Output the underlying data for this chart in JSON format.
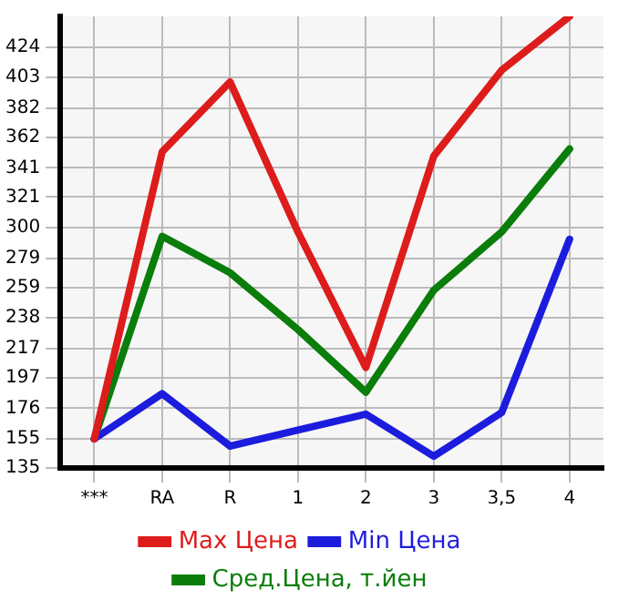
{
  "chart_data": {
    "type": "line",
    "categories": [
      "***",
      "RA",
      "R",
      "1",
      "2",
      "3",
      "3,5",
      "4"
    ],
    "series": [
      {
        "name": "Max Цена",
        "color": "#dd1c1c",
        "values": [
          155,
          352,
          400,
          297,
          204,
          349,
          408,
          445
        ]
      },
      {
        "name": "Min Цена",
        "color": "#1c1cdd",
        "values": [
          155,
          186,
          150,
          161,
          172,
          143,
          173,
          292
        ]
      },
      {
        "name": "Сред.Цена, т.йен",
        "color": "#0a7d0a",
        "values": [
          155,
          294,
          269,
          230,
          187,
          257,
          297,
          354
        ]
      }
    ],
    "ylim": [
      135,
      445
    ],
    "yticks": [
      135,
      155,
      176,
      197,
      217,
      238,
      259,
      279,
      300,
      321,
      341,
      362,
      382,
      403,
      424
    ],
    "grid": true,
    "legend": "bottom",
    "marker": "none",
    "line_style": "solid"
  }
}
